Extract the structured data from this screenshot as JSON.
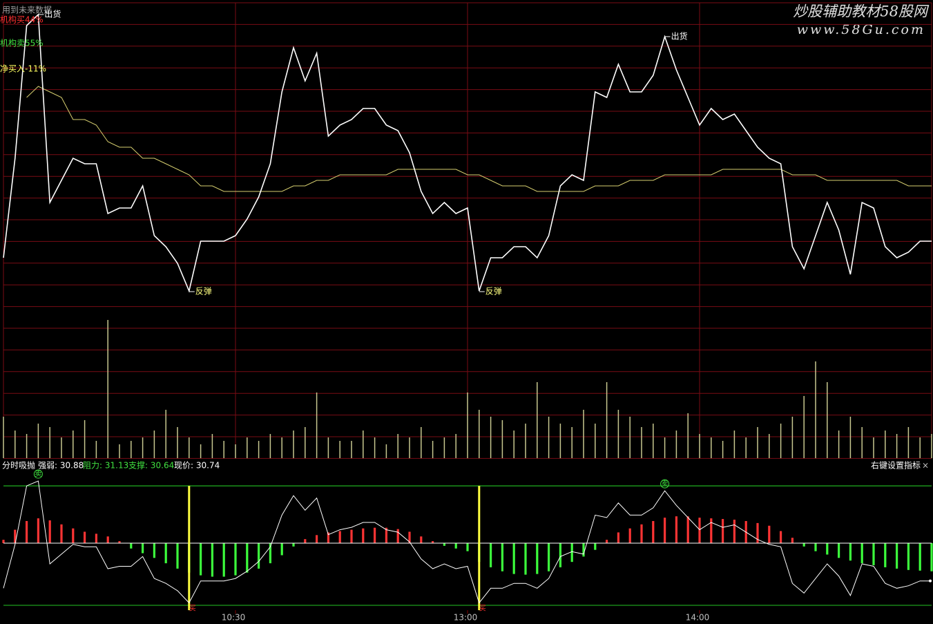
{
  "watermark": {
    "title": "炒股辅助教材58股网",
    "url": "www.58Gu.com"
  },
  "chart_data": [
    {
      "type": "line",
      "header": [
        {
          "text": "用到未来数据",
          "color": "#a0a0a0"
        },
        {
          "text": "机构买44%",
          "color": "#ff3030"
        },
        {
          "text": "机构卖55%",
          "color": "#40e040"
        },
        {
          "text": "净买入-11%",
          "color": "#ffff60"
        }
      ],
      "x": [
        0,
        3,
        6,
        9,
        12,
        15,
        18,
        21,
        24,
        27,
        30,
        33,
        36,
        39,
        42,
        45,
        48,
        51,
        54,
        57,
        60,
        63,
        66,
        69,
        72,
        75,
        78,
        81,
        84,
        87,
        90,
        93,
        96,
        99,
        102,
        105,
        108,
        111,
        114,
        117,
        120,
        123,
        126,
        129,
        132,
        135,
        138,
        141,
        144,
        147,
        150,
        153,
        156,
        159,
        162,
        165,
        168,
        171,
        174,
        177,
        180,
        183,
        186,
        189,
        192,
        195,
        198,
        201,
        204,
        207,
        210,
        213,
        216,
        219,
        222,
        225,
        228,
        231,
        234,
        237,
        240
      ],
      "xlim": [
        0,
        240
      ],
      "xticks": [
        {
          "value": 60,
          "label": "10:30"
        },
        {
          "value": 120,
          "label": "13:00"
        },
        {
          "value": 180,
          "label": "14:00"
        }
      ],
      "ylim": [
        30.62,
        31.17
      ],
      "series": [
        {
          "color": "#ffffff",
          "values": [
            30.71,
            30.89,
            31.13,
            31.15,
            30.81,
            30.85,
            30.89,
            30.88,
            30.88,
            30.79,
            30.8,
            30.8,
            30.84,
            30.75,
            30.73,
            30.7,
            30.65,
            30.74,
            30.74,
            30.74,
            30.75,
            30.78,
            30.82,
            30.88,
            31.01,
            31.09,
            31.03,
            31.08,
            30.93,
            30.95,
            30.96,
            30.98,
            30.98,
            30.95,
            30.94,
            30.9,
            30.83,
            30.79,
            30.81,
            30.79,
            30.8,
            30.65,
            30.71,
            30.71,
            30.73,
            30.73,
            30.71,
            30.75,
            30.84,
            30.86,
            30.85,
            31.01,
            31.0,
            31.06,
            31.01,
            31.01,
            31.04,
            31.11,
            31.05,
            31.0,
            30.95,
            30.98,
            30.96,
            30.97,
            30.94,
            30.91,
            30.89,
            30.88,
            30.73,
            30.69,
            30.75,
            30.81,
            30.76,
            30.68,
            30.81,
            30.8,
            30.73,
            30.71,
            30.72,
            30.74,
            30.74
          ]
        },
        {
          "color": "#d8d070",
          "values": [
            null,
            null,
            31.0,
            31.02,
            31.01,
            31.0,
            30.96,
            30.96,
            30.95,
            30.92,
            30.91,
            30.91,
            30.89,
            30.89,
            30.88,
            30.87,
            30.86,
            30.84,
            30.84,
            30.83,
            30.83,
            30.83,
            30.83,
            30.83,
            30.83,
            30.84,
            30.84,
            30.85,
            30.85,
            30.86,
            30.86,
            30.86,
            30.86,
            30.86,
            30.87,
            30.87,
            30.87,
            30.87,
            30.87,
            30.87,
            30.86,
            30.86,
            30.85,
            30.84,
            30.84,
            30.84,
            30.83,
            30.83,
            30.83,
            30.83,
            30.83,
            30.84,
            30.84,
            30.84,
            30.85,
            30.85,
            30.85,
            30.86,
            30.86,
            30.86,
            30.86,
            30.86,
            30.87,
            30.87,
            30.87,
            30.87,
            30.87,
            30.87,
            30.86,
            30.86,
            30.86,
            30.85,
            30.85,
            30.85,
            30.85,
            30.85,
            30.85,
            30.85,
            30.84,
            30.84,
            30.84
          ]
        }
      ],
      "annotations": [
        {
          "text": "出货",
          "x": 9
        },
        {
          "text": "反弹",
          "x": 48
        },
        {
          "text": "反弹",
          "x": 123
        },
        {
          "text": "出货",
          "x": 171
        }
      ]
    },
    {
      "type": "bar",
      "ylim": [
        0,
        213
      ],
      "color": "#c8c890",
      "values": [
        60,
        40,
        35,
        50,
        45,
        30,
        40,
        55,
        25,
        200,
        20,
        25,
        30,
        40,
        70,
        45,
        30,
        20,
        35,
        25,
        20,
        30,
        25,
        35,
        30,
        40,
        45,
        95,
        30,
        25,
        25,
        40,
        30,
        20,
        35,
        30,
        45,
        25,
        30,
        35,
        95,
        70,
        60,
        55,
        40,
        50,
        110,
        60,
        50,
        45,
        70,
        50,
        110,
        70,
        60,
        45,
        50,
        30,
        40,
        65,
        35,
        30,
        25,
        40,
        30,
        45,
        35,
        50,
        60,
        90,
        140,
        110,
        40,
        60,
        45,
        30,
        40,
        35,
        45,
        30,
        35
      ]
    },
    {
      "type": "indicator",
      "title": "分时吸抛",
      "strength": {
        "value": 30.88,
        "label": "强弱: 30.88"
      },
      "resistance": {
        "value": 31.13,
        "label": "阻力: 31.13"
      },
      "support": {
        "value": 30.64,
        "label": "支撑: 30.64"
      },
      "price": {
        "value": 30.74,
        "label": "现价: 30.74"
      },
      "menu": "右键设置指标",
      "close": "×",
      "ylim": [
        30.62,
        31.17
      ],
      "y2lim": [
        -1,
        1
      ],
      "positive_color": "#ff3434",
      "negative_color": "#3cff3c",
      "histogram": [
        0.05,
        0.2,
        0.33,
        0.37,
        0.34,
        0.28,
        0.22,
        0.17,
        0.14,
        0.1,
        0.03,
        -0.08,
        -0.15,
        -0.22,
        -0.3,
        -0.38,
        -0.44,
        -0.48,
        -0.5,
        -0.5,
        -0.48,
        -0.44,
        -0.38,
        -0.3,
        -0.18,
        -0.05,
        0.06,
        0.12,
        0.16,
        0.18,
        0.2,
        0.22,
        0.23,
        0.23,
        0.21,
        0.17,
        0.1,
        0.03,
        -0.04,
        -0.08,
        -0.12,
        -0.28,
        -0.36,
        -0.42,
        -0.46,
        -0.47,
        -0.46,
        -0.42,
        -0.36,
        -0.28,
        -0.2,
        -0.1,
        0.05,
        0.16,
        0.22,
        0.28,
        0.33,
        0.38,
        0.4,
        0.4,
        0.38,
        0.37,
        0.36,
        0.35,
        0.33,
        0.3,
        0.26,
        0.18,
        0.08,
        -0.05,
        -0.12,
        -0.17,
        -0.22,
        -0.26,
        -0.3,
        -0.33,
        -0.36,
        -0.38,
        -0.4,
        -0.41,
        -0.42
      ],
      "signals": [
        {
          "text": "卖",
          "x": 9,
          "color": "#40e040"
        },
        {
          "text": "买",
          "x": 48,
          "color": "#ff3030",
          "line_color": "#ffff40"
        },
        {
          "text": "买",
          "x": 123,
          "color": "#ff3030",
          "line_color": "#ffff40"
        },
        {
          "text": "卖",
          "x": 171,
          "color": "#40e040"
        }
      ]
    }
  ]
}
